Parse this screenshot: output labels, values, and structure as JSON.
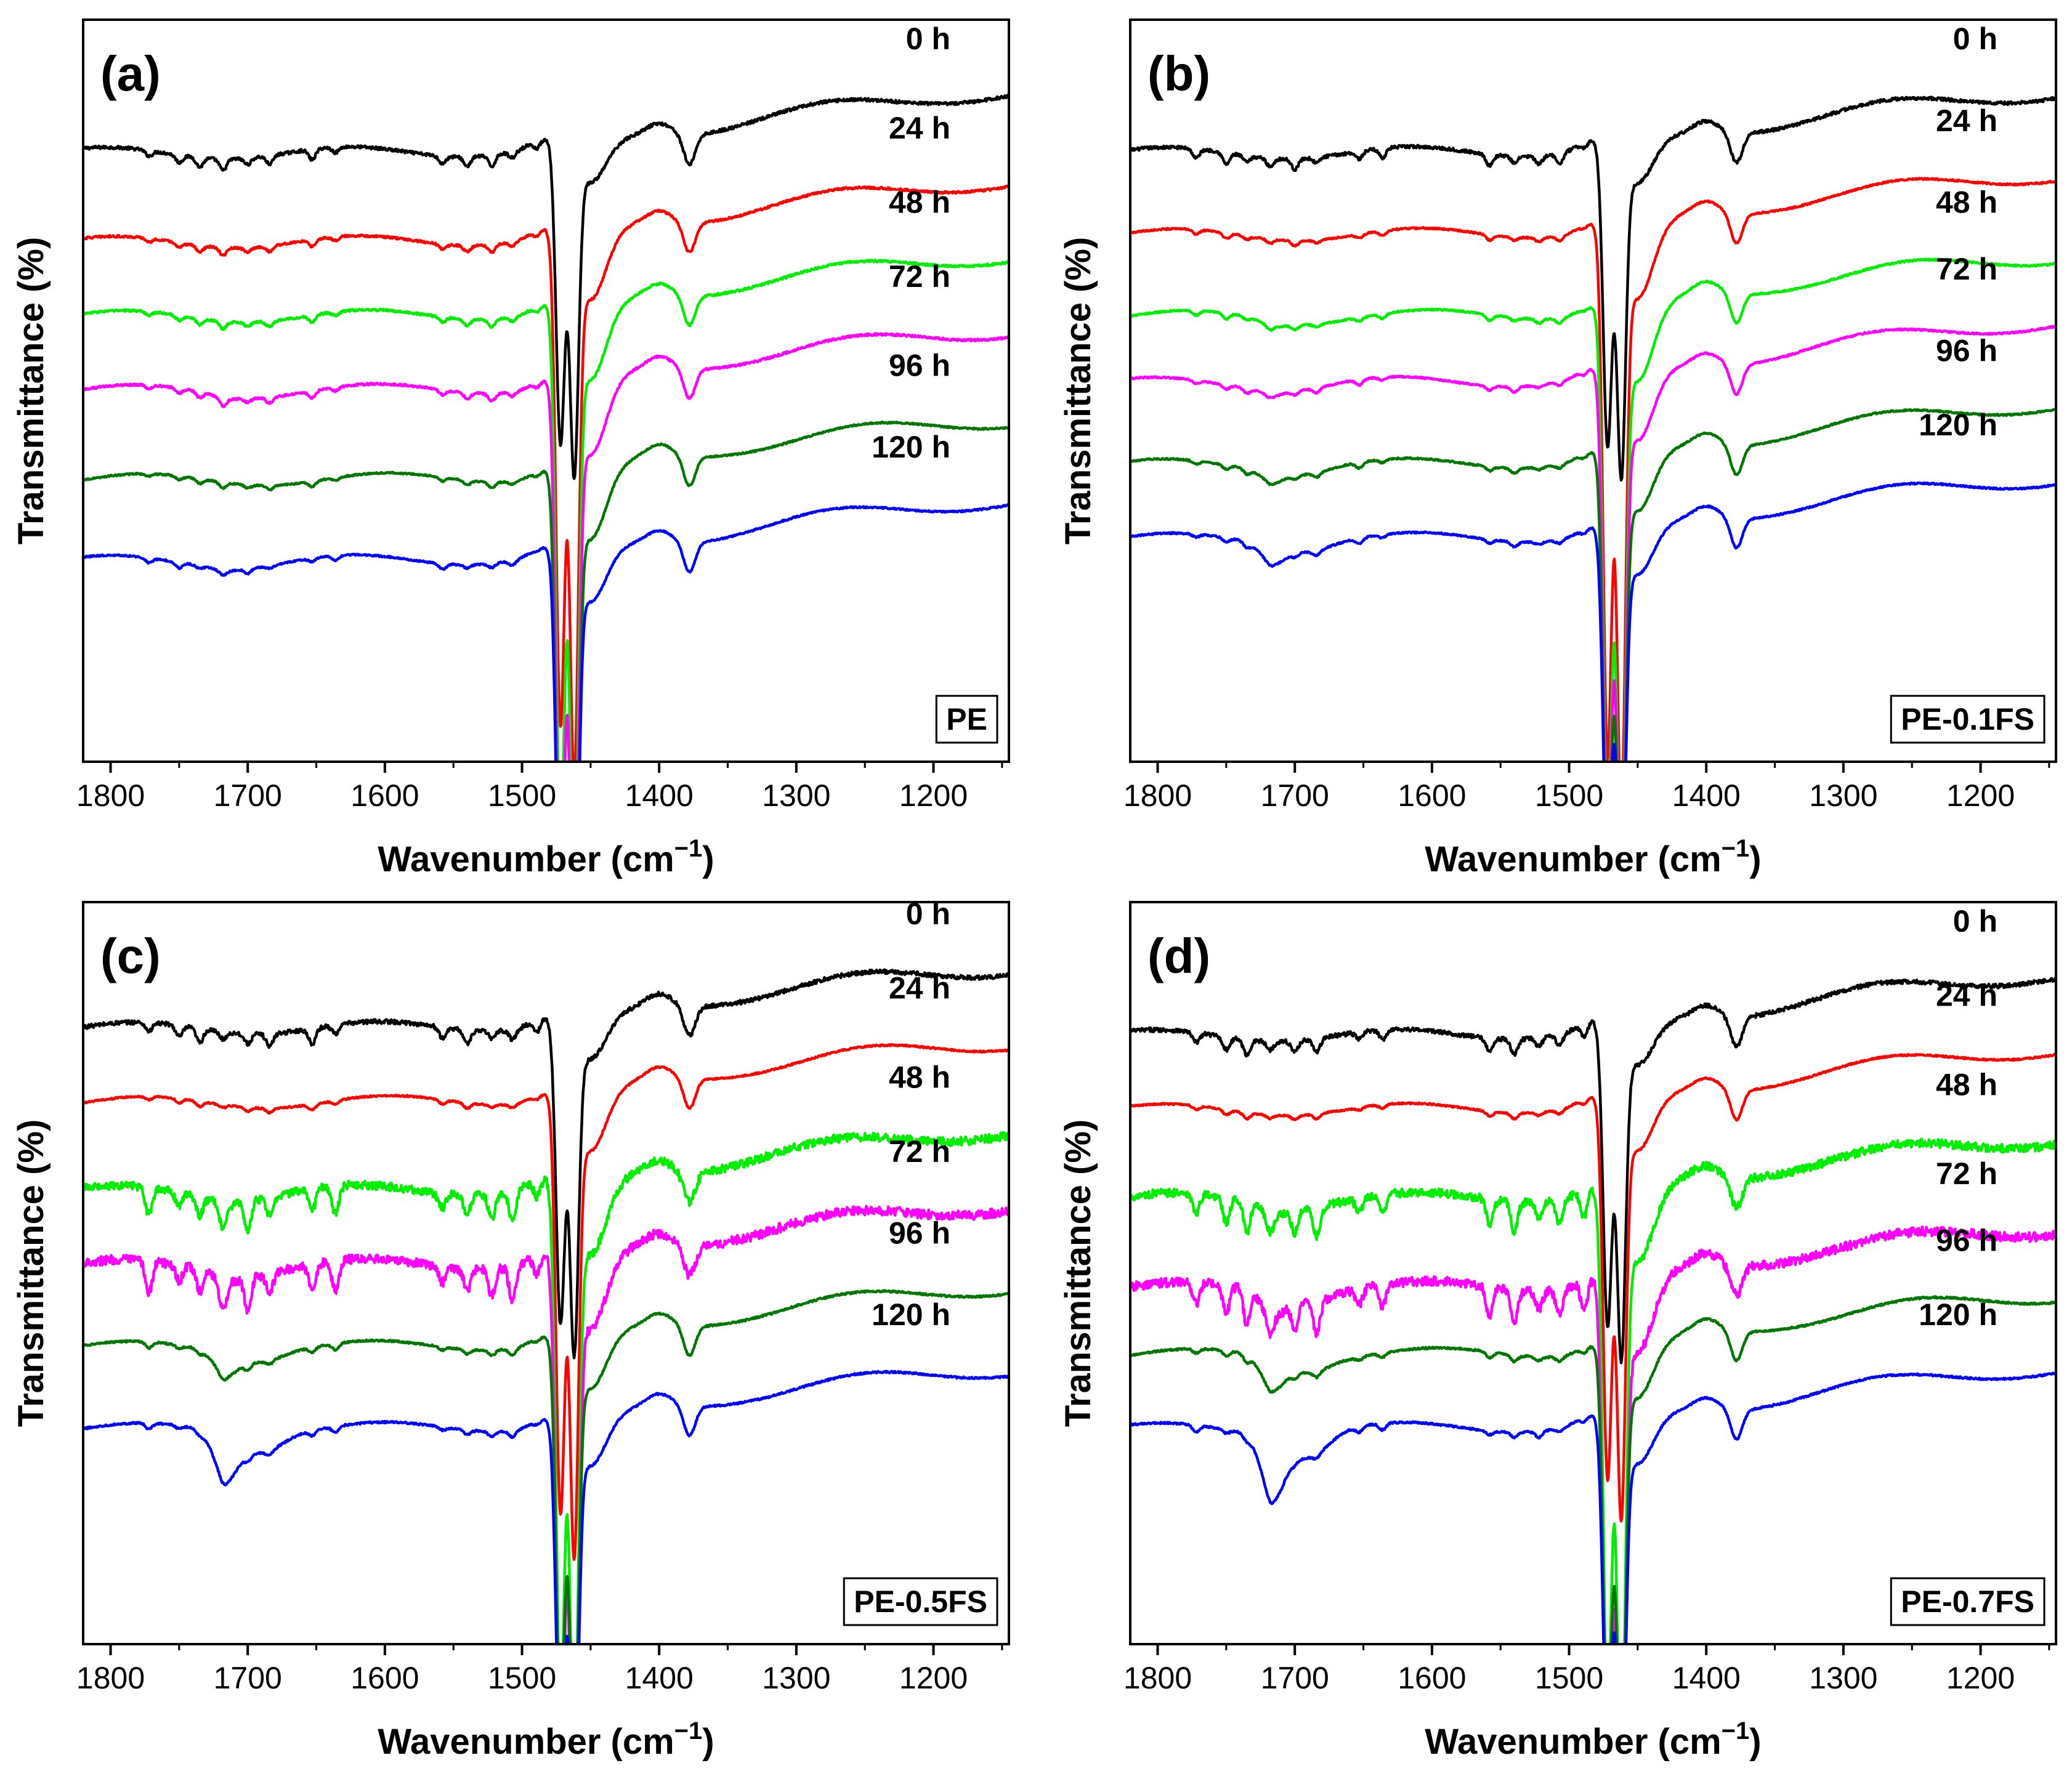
{
  "chart_data": [
    {
      "type": "line",
      "panel_label": "(a)",
      "sample": "PE",
      "xlabel": "Wavenumber (cm",
      "xlabel_sup": "−1",
      "xlabel_close": ")",
      "ylabel": "Transmittance (%)",
      "xlim": [
        1820,
        1145
      ],
      "xticks": [
        1800,
        1700,
        1600,
        1500,
        1400,
        1300,
        1200
      ],
      "xtick_labels": [
        "1800",
        "1700",
        "1600",
        "1500",
        "1400",
        "1300",
        "1200"
      ],
      "ylim": [
        0,
        100
      ],
      "grid": false,
      "series": [
        {
          "name": "0 h",
          "color": "#000000",
          "baseline": 82,
          "rise": 8,
          "main_depth": 40,
          "shoulder": 6,
          "dip1380": 4,
          "oxidation": 0,
          "noise": 1.2
        },
        {
          "name": "24 h",
          "color": "#ff0000",
          "baseline": 70,
          "rise": 8,
          "main_depth": 65,
          "shoulder": 6,
          "dip1380": 4,
          "oxidation": 0,
          "noise": 0.8
        },
        {
          "name": "48 h",
          "color": "#00ee00",
          "baseline": 60,
          "rise": 8,
          "main_depth": 70,
          "shoulder": 6,
          "dip1380": 4,
          "oxidation": 0,
          "noise": 0.8
        },
        {
          "name": "72 h",
          "color": "#ff00ff",
          "baseline": 50,
          "rise": 8,
          "main_depth": 70,
          "shoulder": 6,
          "dip1380": 4,
          "oxidation": 0.5,
          "noise": 0.8
        },
        {
          "name": "96 h",
          "color": "#007700",
          "baseline": 38,
          "rise": 8,
          "main_depth": 65,
          "shoulder": 6,
          "dip1380": 4,
          "oxidation": 0,
          "noise": 0.6
        },
        {
          "name": "120 h",
          "color": "#0000ff",
          "baseline": 27,
          "rise": 8,
          "main_depth": 50,
          "shoulder": 6,
          "dip1380": 4,
          "oxidation": 0.5,
          "noise": 0.6
        }
      ]
    },
    {
      "type": "line",
      "panel_label": "(b)",
      "sample": "PE-0.1FS",
      "xlabel": "Wavenumber (cm",
      "xlabel_sup": "−1",
      "xlabel_close": ")",
      "ylabel": "Transmittance (%)",
      "xlim": [
        1820,
        1145
      ],
      "xticks": [
        1800,
        1700,
        1600,
        1500,
        1400,
        1300,
        1200
      ],
      "xtick_labels": [
        "1800",
        "1700",
        "1600",
        "1500",
        "1400",
        "1300",
        "1200"
      ],
      "ylim": [
        0,
        100
      ],
      "grid": false,
      "series": [
        {
          "name": "0 h",
          "color": "#000000",
          "baseline": 82,
          "rise": 8,
          "main_depth": 40,
          "shoulder": 6,
          "dip1380": 4,
          "oxidation": 0,
          "noise": 1.2
        },
        {
          "name": "24 h",
          "color": "#ff0000",
          "baseline": 71,
          "rise": 8,
          "main_depth": 70,
          "shoulder": 6,
          "dip1380": 4,
          "oxidation": 0,
          "noise": 0.6
        },
        {
          "name": "48 h",
          "color": "#00ee00",
          "baseline": 60,
          "rise": 8,
          "main_depth": 70,
          "shoulder": 6,
          "dip1380": 4,
          "oxidation": 0.8,
          "noise": 0.6
        },
        {
          "name": "72 h",
          "color": "#ff00ff",
          "baseline": 51,
          "rise": 8,
          "main_depth": 65,
          "shoulder": 6,
          "dip1380": 4,
          "oxidation": 0.8,
          "noise": 0.6
        },
        {
          "name": "96 h",
          "color": "#007700",
          "baseline": 40,
          "rise": 8,
          "main_depth": 55,
          "shoulder": 6,
          "dip1380": 4,
          "oxidation": 1.5,
          "noise": 0.6
        },
        {
          "name": "120 h",
          "color": "#0000ff",
          "baseline": 30,
          "rise": 8,
          "main_depth": 45,
          "shoulder": 6,
          "dip1380": 4,
          "oxidation": 2.5,
          "noise": 0.6
        }
      ]
    },
    {
      "type": "line",
      "panel_label": "(c)",
      "sample": "PE-0.5FS",
      "xlabel": "Wavenumber (cm",
      "xlabel_sup": "−1",
      "xlabel_close": ")",
      "ylabel": "Transmittance (%)",
      "xlim": [
        1820,
        1145
      ],
      "xticks": [
        1800,
        1700,
        1600,
        1500,
        1400,
        1300,
        1200
      ],
      "xtick_labels": [
        "1800",
        "1700",
        "1600",
        "1500",
        "1400",
        "1300",
        "1200"
      ],
      "ylim": [
        0,
        100
      ],
      "grid": false,
      "series": [
        {
          "name": "0 h",
          "color": "#000000",
          "baseline": 83,
          "rise": 8,
          "main_depth": 40,
          "shoulder": 6,
          "dip1380": 4,
          "oxidation": 0,
          "noise": 1.6
        },
        {
          "name": "24 h",
          "color": "#ff0000",
          "baseline": 73,
          "rise": 8,
          "main_depth": 55,
          "shoulder": 6,
          "dip1380": 4,
          "oxidation": 0,
          "noise": 0.6
        },
        {
          "name": "48 h",
          "color": "#00ee00",
          "baseline": 61,
          "rise": 8,
          "main_depth": 70,
          "shoulder": 6,
          "dip1380": 4,
          "oxidation": 1,
          "noise": 3.2
        },
        {
          "name": "72 h",
          "color": "#ff00ff",
          "baseline": 51,
          "rise": 8,
          "main_depth": 70,
          "shoulder": 6,
          "dip1380": 4,
          "oxidation": 1.5,
          "noise": 3.6
        },
        {
          "name": "96 h",
          "color": "#007700",
          "baseline": 40,
          "rise": 8,
          "main_depth": 50,
          "shoulder": 6,
          "dip1380": 4,
          "oxidation": 3,
          "noise": 0.7
        },
        {
          "name": "120 h",
          "color": "#0000ff",
          "baseline": 29,
          "rise": 8,
          "main_depth": 45,
          "shoulder": 6,
          "dip1380": 4,
          "oxidation": 6,
          "noise": 0.7
        }
      ]
    },
    {
      "type": "line",
      "panel_label": "(d)",
      "sample": "PE-0.7FS",
      "xlabel": "Wavenumber (cm",
      "xlabel_sup": "−1",
      "xlabel_close": ")",
      "ylabel": "Transmittance (%)",
      "xlim": [
        1820,
        1145
      ],
      "xticks": [
        1800,
        1700,
        1600,
        1500,
        1400,
        1300,
        1200
      ],
      "xtick_labels": [
        "1800",
        "1700",
        "1600",
        "1500",
        "1400",
        "1300",
        "1200"
      ],
      "ylim": [
        0,
        100
      ],
      "grid": false,
      "series": [
        {
          "name": "0 h",
          "color": "#000000",
          "baseline": 82,
          "rise": 8,
          "main_depth": 40,
          "shoulder": 6,
          "dip1380": 4,
          "oxidation": 0,
          "noise": 1.6
        },
        {
          "name": "24 h",
          "color": "#ff0000",
          "baseline": 72,
          "rise": 8,
          "main_depth": 50,
          "shoulder": 6,
          "dip1380": 4,
          "oxidation": 0,
          "noise": 0.6
        },
        {
          "name": "48 h",
          "color": "#00ee00",
          "baseline": 60,
          "rise": 8,
          "main_depth": 70,
          "shoulder": 6,
          "dip1380": 4,
          "oxidation": 1.5,
          "noise": 3.2
        },
        {
          "name": "72 h",
          "color": "#ff00ff",
          "baseline": 48,
          "rise": 8,
          "main_depth": 70,
          "shoulder": 6,
          "dip1380": 4,
          "oxidation": 3,
          "noise": 3.6
        },
        {
          "name": "96 h",
          "color": "#007700",
          "baseline": 39,
          "rise": 8,
          "main_depth": 50,
          "shoulder": 6,
          "dip1380": 4,
          "oxidation": 4,
          "noise": 0.7
        },
        {
          "name": "120 h",
          "color": "#0000ff",
          "baseline": 29,
          "rise": 8,
          "main_depth": 45,
          "shoulder": 6,
          "dip1380": 4,
          "oxidation": 8,
          "noise": 0.7
        }
      ]
    }
  ]
}
